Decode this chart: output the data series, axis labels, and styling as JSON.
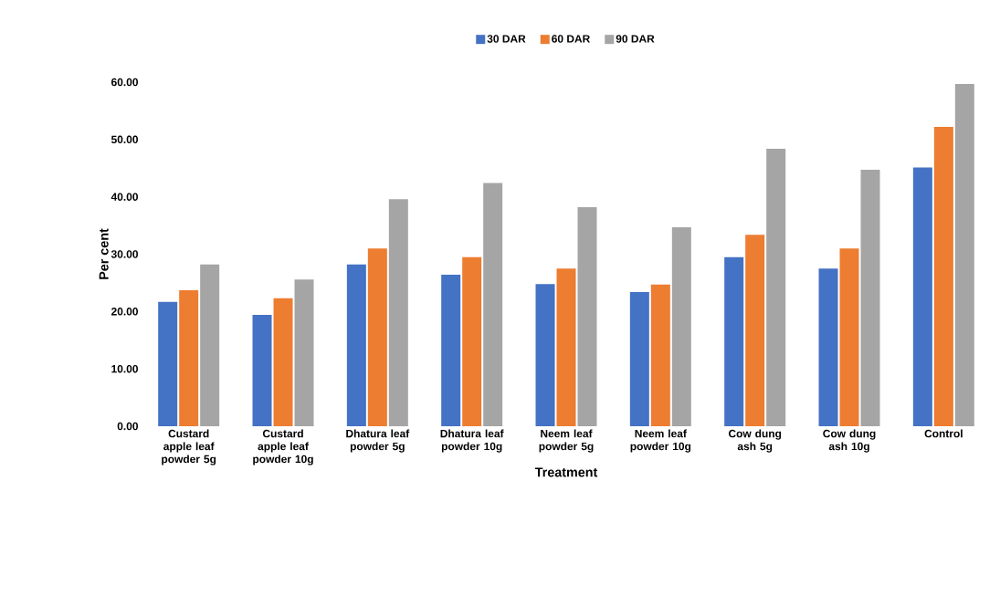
{
  "chart_data": {
    "type": "bar",
    "xlabel": "Treatment",
    "ylabel": "Per cent",
    "categories": [
      "Custard apple leaf powder 5g",
      "Custard apple leaf powder 10g",
      "Dhatura leaf powder 5g",
      "Dhatura leaf powder 10g",
      "Neem leaf powder 5g",
      "Neem leaf powder 10g",
      "Cow dung ash 5g",
      "Cow dung ash 10g",
      "Control"
    ],
    "series": [
      {
        "name": "30 DAR",
        "color": "#4472c4",
        "values": [
          21.7,
          19.4,
          28.2,
          26.4,
          24.8,
          23.4,
          29.5,
          27.5,
          45.1
        ]
      },
      {
        "name": "60 DAR",
        "color": "#ed7d31",
        "values": [
          23.7,
          22.3,
          31.0,
          29.5,
          27.5,
          24.7,
          33.4,
          31.0,
          52.2
        ]
      },
      {
        "name": "90 DAR",
        "color": "#a5a5a5",
        "values": [
          28.2,
          25.6,
          39.6,
          42.4,
          38.2,
          34.7,
          48.4,
          44.7,
          59.7
        ]
      }
    ],
    "ylim": [
      0,
      60
    ],
    "yticks": [
      {
        "value": 0,
        "label": "0.00"
      },
      {
        "value": 10,
        "label": "10.00"
      },
      {
        "value": 20,
        "label": "20.00"
      },
      {
        "value": 30,
        "label": "30.00"
      },
      {
        "value": 40,
        "label": "40.00"
      },
      {
        "value": 50,
        "label": "50.00"
      },
      {
        "value": 60,
        "label": "60.00"
      }
    ],
    "grid": false,
    "legend": "top"
  }
}
